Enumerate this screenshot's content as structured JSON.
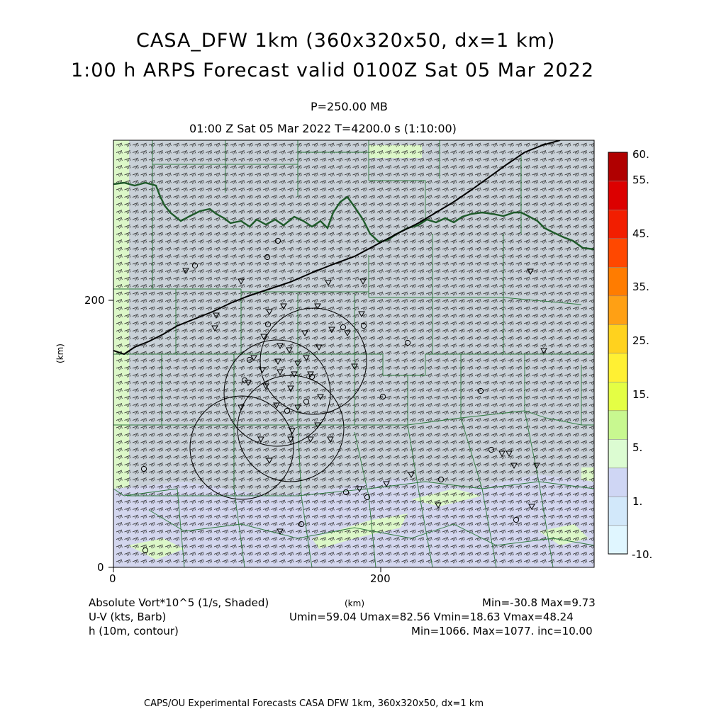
{
  "title": {
    "line1": "CASA_DFW 1km (360x320x50, dx=1 km)",
    "line2": "1:00 h ARPS Forecast valid 0100Z Sat 05 Mar 2022"
  },
  "subtitle": {
    "level": "P=250.00 MB",
    "time": "01:00 Z Sat 05 Mar 2022    T=4200.0 s (1:10:00)"
  },
  "axes": {
    "ylabel": "(km)",
    "xlabel": "(km)",
    "x_ticks": [
      "0",
      "200"
    ],
    "y_ticks": [
      "0",
      "200"
    ]
  },
  "colorbar": {
    "labels": [
      "60.",
      "55.",
      "45.",
      "35.",
      "25.",
      "15.",
      "5.",
      "1.",
      "-10."
    ],
    "colors": [
      "#e0f6ff",
      "#d2e8fa",
      "#cfd6f4",
      "#dcfcd2",
      "#c8f890",
      "#e4fe44",
      "#fff033",
      "#ffd21e",
      "#ffa014",
      "#ff7c00",
      "#ff4800",
      "#f21e00",
      "#dc0000",
      "#b00000"
    ]
  },
  "legend": {
    "field1": "Absolute Vort*10^5 (1/s, Shaded)",
    "field2": "U-V (kts, Barb)",
    "field3": "h (10m, contour)",
    "stats1": "Min=-30.8 Max=9.73",
    "stats2": "Umin=59.04 Umax=82.56 Vmin=18.63 Vmax=48.24",
    "stats3": "Min=1066. Max=1077. inc=10.00"
  },
  "footer": "CAPS/OU Experimental Forecasts   CASA DFW 1km, 360x320x50, dx=1 km",
  "icons": {
    "station_circle": "circle-marker",
    "station_triangle": "down-triangle-marker",
    "wind_barb": "wind-barb-icon"
  }
}
